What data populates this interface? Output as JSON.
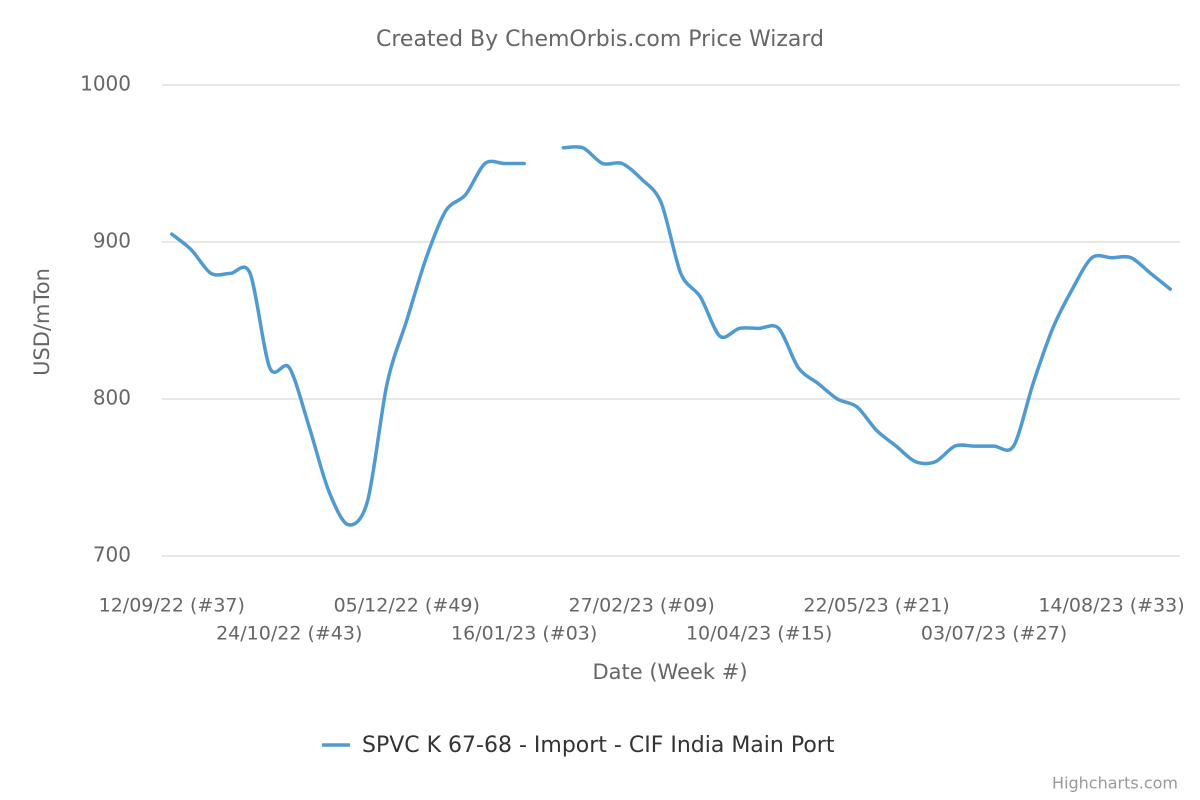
{
  "chart_data": {
    "type": "line",
    "title": "Created By ChemOrbis.com Price Wizard",
    "x_label": "Date (Week #)",
    "y_label": "USD/mTon",
    "credits": "Highcharts.com",
    "categories": [
      "12/09/22 (#37)",
      null,
      null,
      null,
      null,
      null,
      "24/10/22 (#43)",
      null,
      null,
      null,
      null,
      null,
      "05/12/22 (#49)",
      null,
      null,
      null,
      null,
      null,
      "16/01/23 (#03)",
      null,
      null,
      null,
      null,
      null,
      "27/02/23 (#09)",
      null,
      null,
      null,
      null,
      null,
      "10/04/23 (#15)",
      null,
      null,
      null,
      null,
      null,
      "22/05/23 (#21)",
      null,
      null,
      null,
      null,
      null,
      "03/07/23 (#27)",
      null,
      null,
      null,
      null,
      null,
      "14/08/23 (#33)",
      null,
      null,
      null
    ],
    "series": [
      {
        "name": "SPVC K 67-68 - Import - CIF India Main Port",
        "color": "#4f9bd1",
        "values": [
          905,
          895,
          880,
          880,
          880,
          820,
          820,
          783,
          742,
          720,
          735,
          810,
          850,
          890,
          920,
          930,
          950,
          950,
          950,
          null,
          960,
          960,
          950,
          950,
          940,
          925,
          880,
          865,
          840,
          845,
          845,
          845,
          820,
          810,
          800,
          795,
          780,
          770,
          760,
          760,
          770,
          770,
          770,
          770,
          810,
          845,
          870,
          890,
          890,
          890,
          880,
          870
        ]
      }
    ],
    "ylim": [
      700,
      1000
    ],
    "yticks": [
      700,
      800,
      900,
      1000
    ],
    "grid": true,
    "legend": "bottom"
  }
}
